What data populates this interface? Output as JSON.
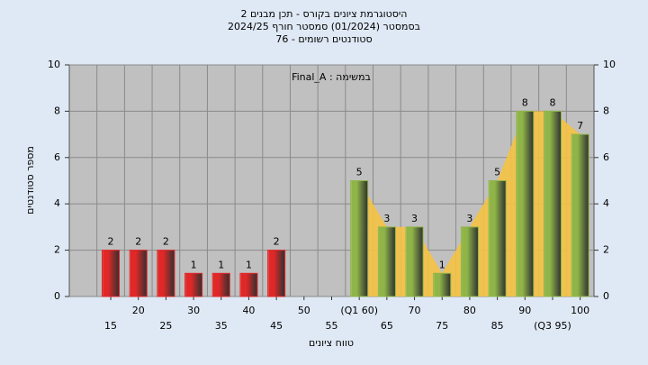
{
  "chart_data": {
    "type": "bar",
    "title": [
      "היסטוגרמת ציונים בקורס - תכן מבנים 2",
      "בסמסטר  (01/2024)  סמסטר חורף 2024/25",
      "סטודנטים רשומים - 76"
    ],
    "annotation": "במשימה : Final_A",
    "x_label": "טווח ציונים",
    "y_label": "מספר סטודנטים",
    "categories": [
      "15",
      "20",
      "25",
      "30",
      "35",
      "40",
      "45",
      "50",
      "55",
      "(Q1 60)",
      "65",
      "70",
      "75",
      "80",
      "85",
      "90",
      "(Q3 95)",
      "100"
    ],
    "values": [
      2,
      2,
      2,
      1,
      1,
      1,
      2,
      0,
      0,
      5,
      3,
      3,
      1,
      3,
      5,
      8,
      8,
      7
    ],
    "bar_colors": [
      "#e02828",
      "#e02828",
      "#e02828",
      "#e02828",
      "#e02828",
      "#e02828",
      "#e02828",
      "#e02828",
      "#e02828",
      "#8fb548",
      "#8fb548",
      "#8fb548",
      "#8fb548",
      "#8fb548",
      "#8fb548",
      "#8fb548",
      "#8fb548",
      "#8fb548"
    ],
    "area_color": "#f5c242",
    "ylim": [
      0,
      10
    ],
    "yticks": [
      0,
      2,
      4,
      6,
      8,
      10
    ],
    "y2lim": [
      0,
      10
    ],
    "y2ticks": [
      0,
      2,
      4,
      6,
      8,
      10
    ],
    "grid": true
  }
}
